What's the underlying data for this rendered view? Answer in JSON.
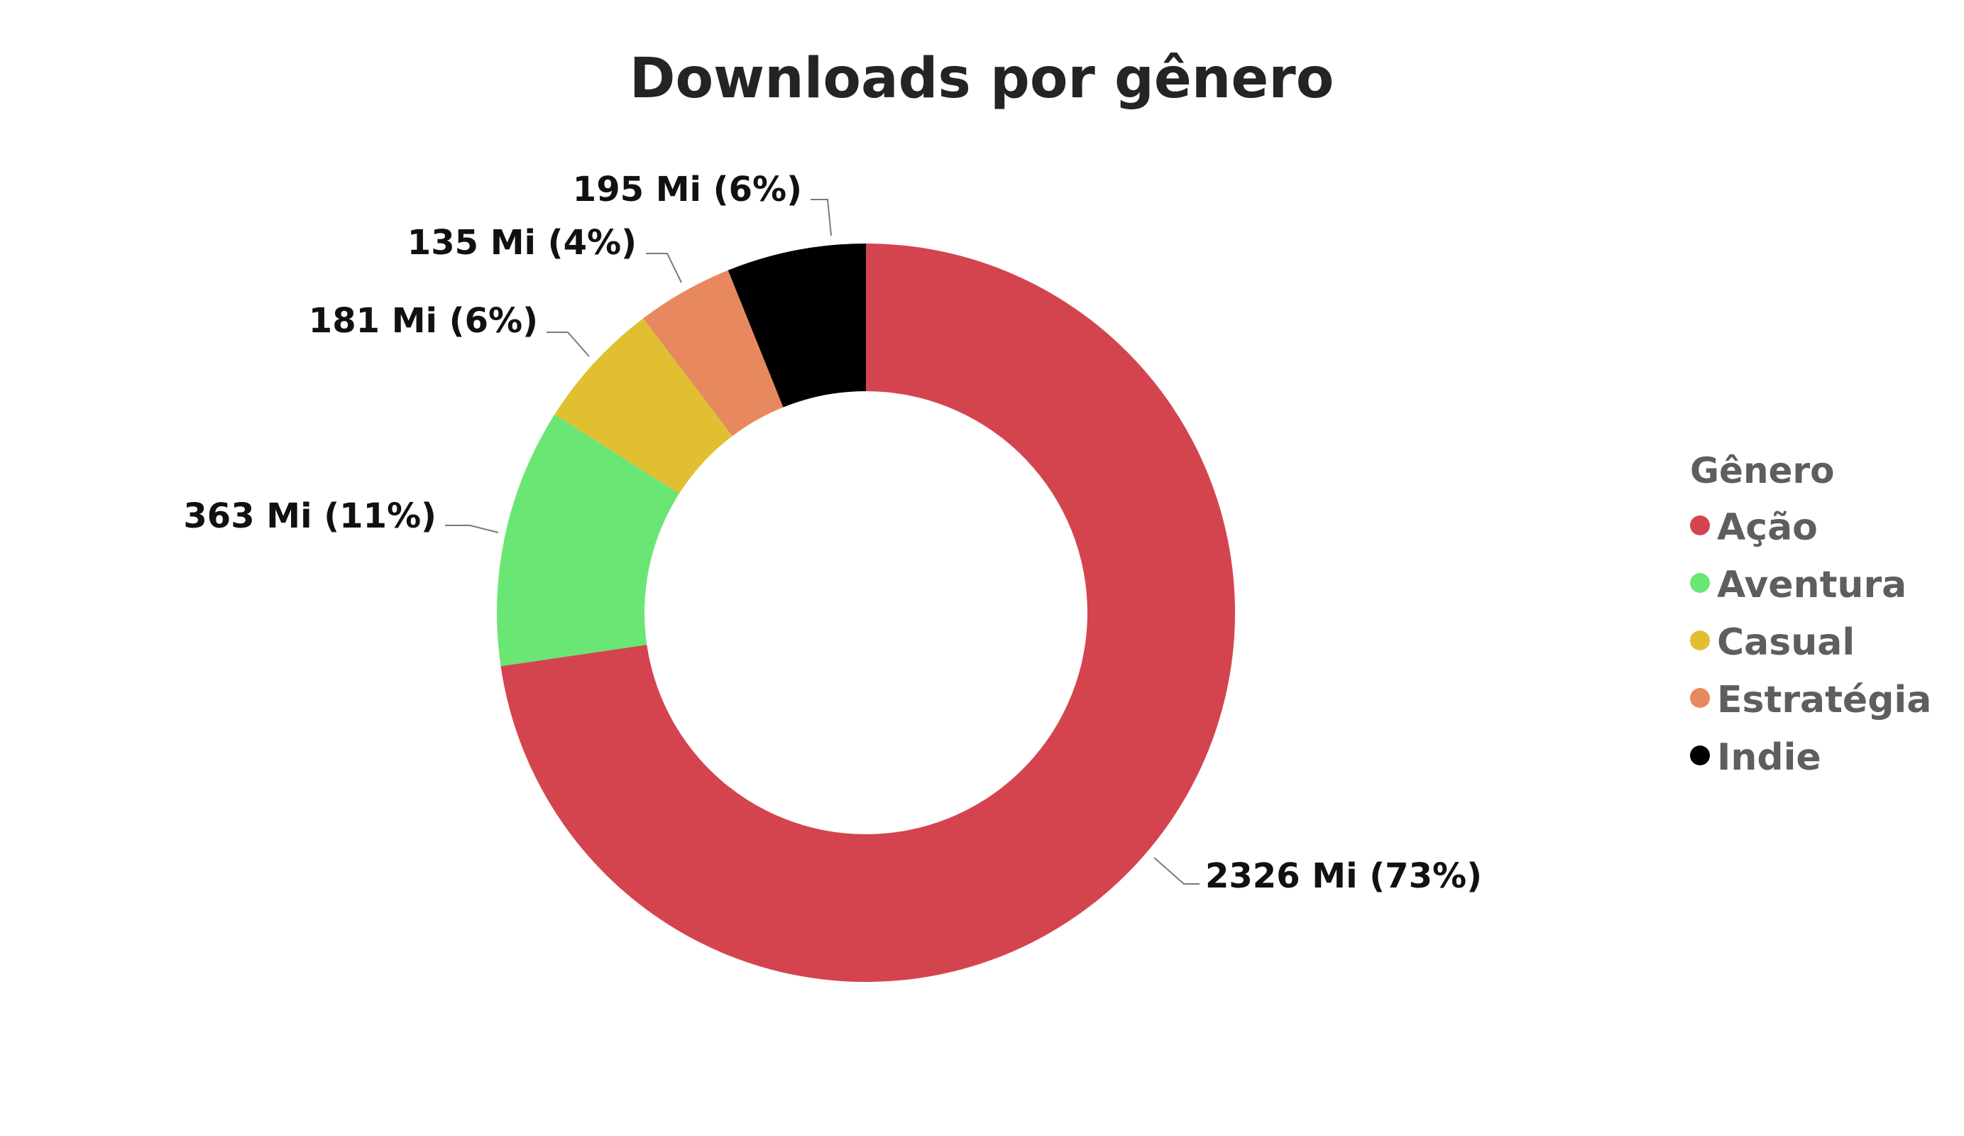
{
  "chart_data": {
    "type": "pie",
    "variant": "donut",
    "title": "Downloads por gênero",
    "legend_title": "Gênero",
    "legend_position": "right",
    "categories": [
      "Ação",
      "Aventura",
      "Casual",
      "Estratégia",
      "Indie"
    ],
    "values": [
      2326,
      363,
      181,
      135,
      195
    ],
    "unit": "Mi",
    "percent": [
      73,
      11,
      6,
      4,
      6
    ],
    "data_labels": [
      "2326 Mi (73%)",
      "363 Mi (11%)",
      "181 Mi (6%)",
      "135 Mi (4%)",
      "195 Mi (6%)"
    ],
    "colors": [
      "#d4444f",
      "#6ae674",
      "#e0c030",
      "#e8885f",
      "#000000"
    ]
  }
}
